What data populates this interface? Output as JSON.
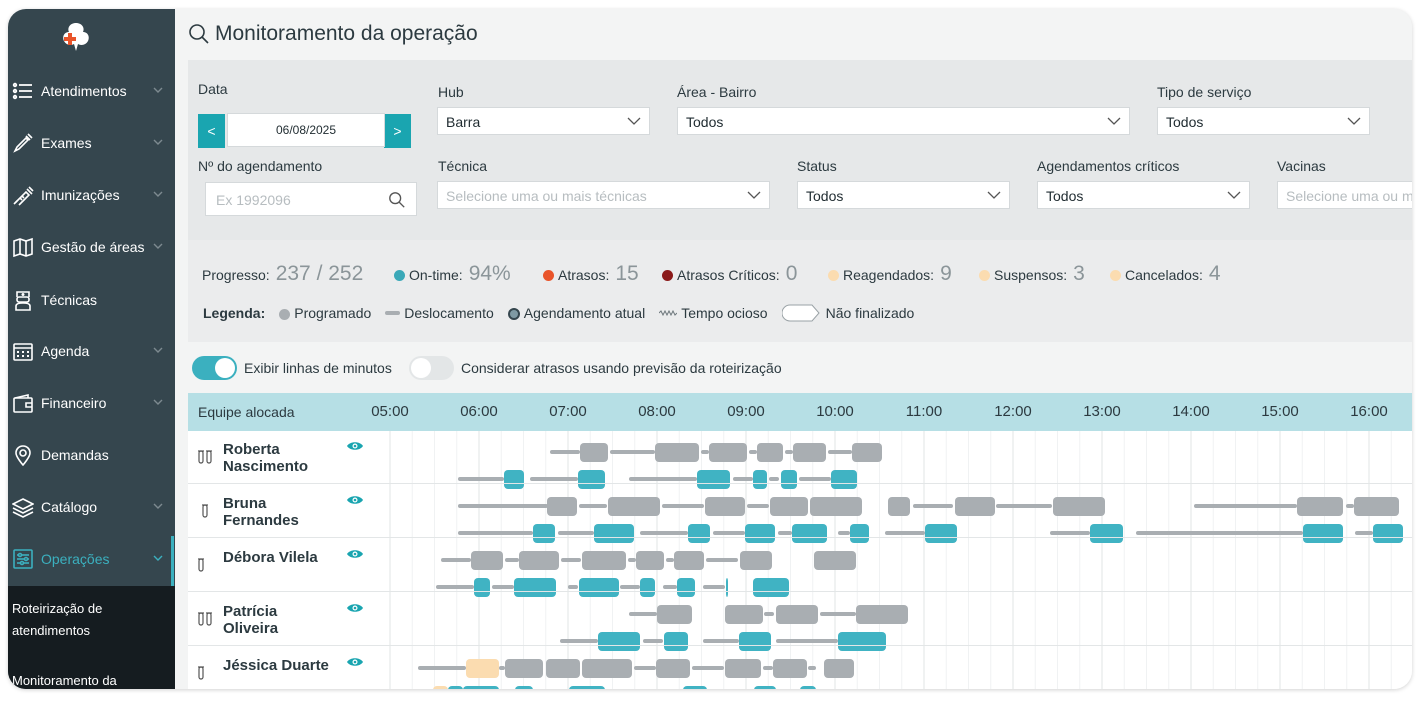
{
  "sidebar": {
    "items": [
      {
        "label": "Atendimentos",
        "icon": "list-icon",
        "chevron": true
      },
      {
        "label": "Exames",
        "icon": "pipette-icon",
        "chevron": true
      },
      {
        "label": "Imunizações",
        "icon": "syringe-icon",
        "chevron": true
      },
      {
        "label": "Gestão de áreas",
        "icon": "map-icon",
        "chevron": true
      },
      {
        "label": "Técnicas",
        "icon": "nurse-icon",
        "chevron": false
      },
      {
        "label": "Agenda",
        "icon": "calendar-icon",
        "chevron": true
      },
      {
        "label": "Financeiro",
        "icon": "wallet-icon",
        "chevron": true
      },
      {
        "label": "Demandas",
        "icon": "location-pin-icon",
        "chevron": false
      },
      {
        "label": "Catálogo",
        "icon": "layers-icon",
        "chevron": true
      },
      {
        "label": "Operações",
        "icon": "sliders-icon",
        "chevron": true
      }
    ],
    "submenu": [
      "Roteirização de atendimentos",
      "Monitoramento da"
    ]
  },
  "page": {
    "title": "Monitoramento da operação"
  },
  "filters": {
    "data_label": "Data",
    "date_value": "06/08/2025",
    "prev_label": "<",
    "next_label": ">",
    "hub_label": "Hub",
    "hub_value": "Barra",
    "area_label": "Área - Bairro",
    "area_value": "Todos",
    "tipo_label": "Tipo de serviço",
    "tipo_value": "Todos",
    "agend_label": "Nº do agendamento",
    "agend_placeholder": "Ex 1992096",
    "tecnica_label": "Técnica",
    "tecnica_placeholder": "Selecione uma ou mais técnicas",
    "status_label": "Status",
    "status_value": "Todos",
    "criticos_label": "Agendamentos críticos",
    "criticos_value": "Todos",
    "vacinas_label": "Vacinas",
    "vacinas_placeholder": "Selecione uma ou ma"
  },
  "progress": {
    "progresso_label": "Progresso:",
    "progresso_value": "237 / 252",
    "ontime_label": "On-time:",
    "ontime_value": "94%",
    "atrasos_label": "Atrasos:",
    "atrasos_value": "15",
    "criticos_label": "Atrasos Críticos:",
    "criticos_value": "0",
    "reagendados_label": "Reagendados:",
    "reagendados_value": "9",
    "suspensos_label": "Suspensos:",
    "suspensos_value": "3",
    "cancelados_label": "Cancelados:",
    "cancelados_value": "4"
  },
  "legend": {
    "title": "Legenda:",
    "programado": "Programado",
    "deslocamento": "Deslocamento",
    "atual": "Agendamento atual",
    "ocioso": "Tempo ocioso",
    "nao_finalizado": "Não finalizado"
  },
  "toggles": {
    "minutos_label": "Exibir linhas de minutos",
    "minutos_on": true,
    "atrasos_label": "Considerar atrasos usando previsão da roteirização",
    "atrasos_on": false
  },
  "timeline": {
    "team_header": "Equipe alocada",
    "hours": [
      "05:00",
      "06:00",
      "07:00",
      "08:00",
      "09:00",
      "10:00",
      "11:00",
      "12:00",
      "13:00",
      "14:00",
      "15:00",
      "16:00"
    ],
    "technicians": [
      {
        "name": "Roberta Nascimento",
        "icon": "two-tubes-icon"
      },
      {
        "name": "Bruna Fernandes",
        "icon": "syringe-tube-icon"
      },
      {
        "name": "Débora Vilela",
        "icon": "tube-icon"
      },
      {
        "name": "Patrícia Oliveira",
        "icon": "two-tubes-icon"
      },
      {
        "name": "Jéssica Duarte",
        "icon": "tube-icon"
      }
    ]
  },
  "colors": {
    "sidebar": "#35464e",
    "accent": "#1aa5b0",
    "teal": "#3bb0bf",
    "gray_block": "#a9aeb2",
    "on_time": "#3aa8b8",
    "atrasos": "#e9542a",
    "criticos": "#8b1a1a",
    "reagendados": "#fbdcb0"
  }
}
